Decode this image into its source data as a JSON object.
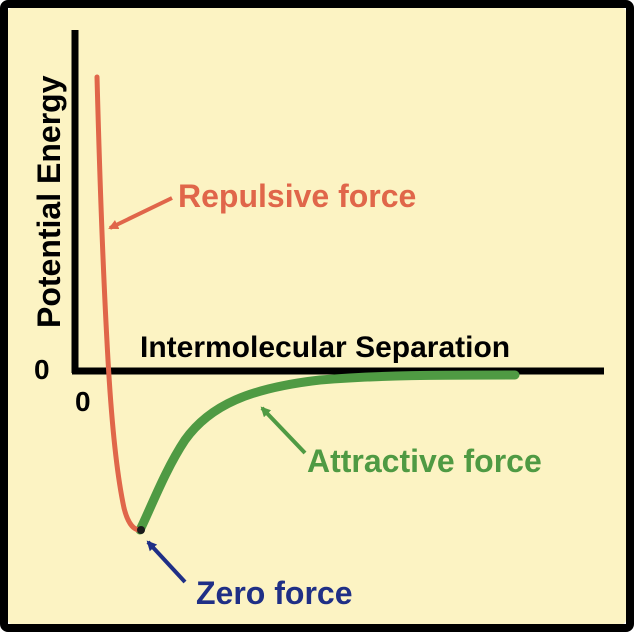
{
  "diagram": {
    "y_axis_label": "Potential Energy",
    "x_axis_label": "Intermolecular Separation",
    "y_zero_label": "0",
    "x_zero_label": "0",
    "annotations": {
      "repulsive": "Repulsive force",
      "attractive": "Attractive force",
      "zero": "Zero force"
    }
  },
  "colors": {
    "background": "#fcf3c3",
    "repulsive": "#e0664a",
    "attractive": "#4f9a43",
    "zero": "#1f2f86",
    "axis": "#000000"
  }
}
